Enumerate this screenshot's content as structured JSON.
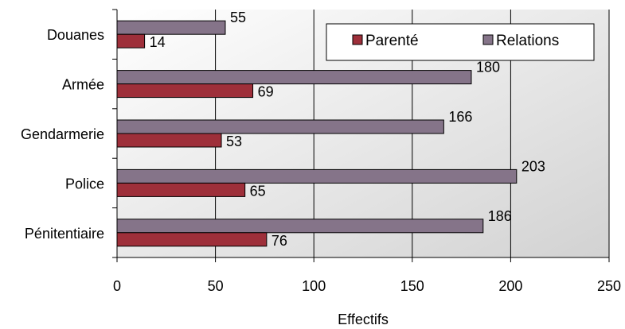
{
  "colors": {
    "parente": "#9e2f3a",
    "relations": "#857489",
    "plot_gradient_start": "#ffffff",
    "plot_gradient_end": "#d2d2d2",
    "grid": "#000000"
  },
  "legend": {
    "items": [
      {
        "label": "Parenté",
        "series": "parente"
      },
      {
        "label": "Relations",
        "series": "relations"
      }
    ]
  },
  "chart_data": {
    "type": "bar",
    "orientation": "horizontal",
    "categories": [
      "Douanes",
      "Armée",
      "Gendarmerie",
      "Police",
      "Pénitentiaire"
    ],
    "series": [
      {
        "name": "Relations",
        "key": "relations",
        "values": [
          55,
          180,
          166,
          203,
          186
        ]
      },
      {
        "name": "Parenté",
        "key": "parente",
        "values": [
          14,
          69,
          53,
          65,
          76
        ]
      }
    ],
    "xlabel": "Effectifs",
    "ylabel": "",
    "xlim": [
      0,
      250
    ],
    "xticks": [
      0,
      50,
      100,
      150,
      200,
      250
    ],
    "grid": "vertical major gridlines",
    "legend_position": "top-right inside plot"
  }
}
